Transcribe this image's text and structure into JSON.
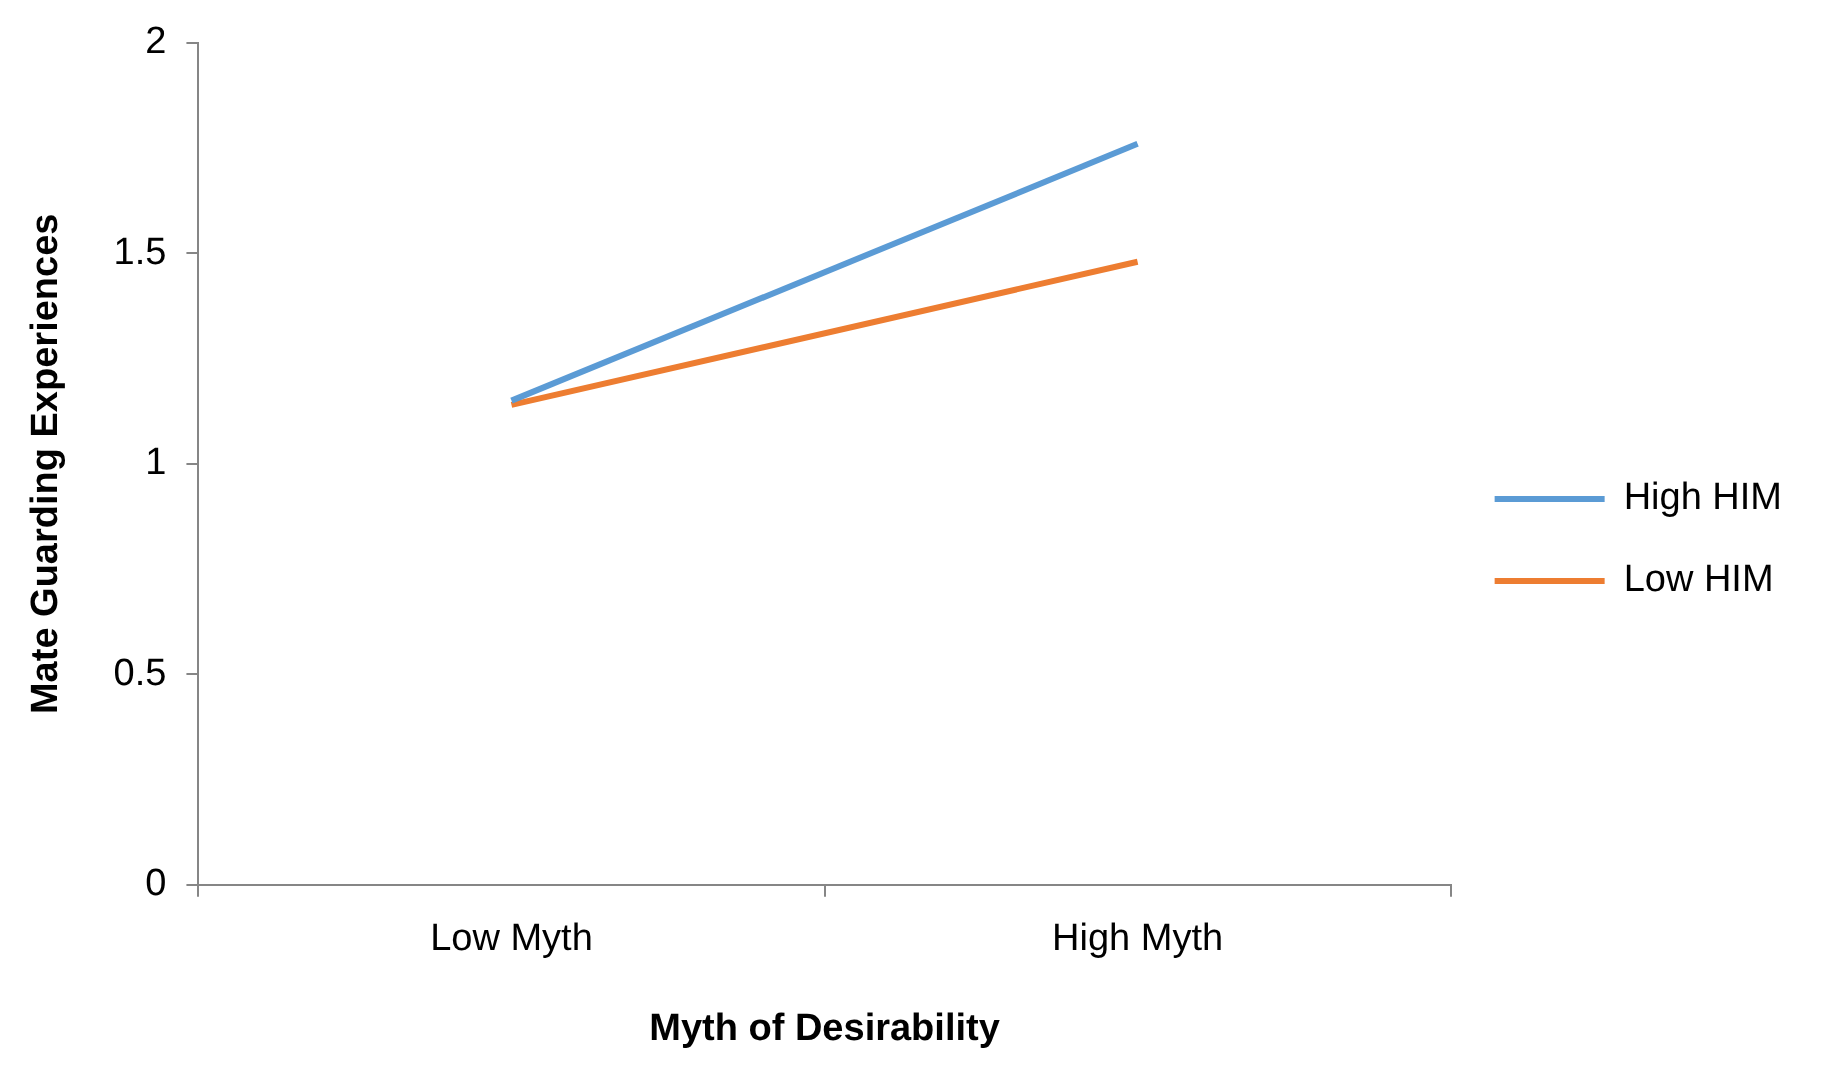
{
  "chart_data": {
    "type": "line",
    "xlabel": "Myth of Desirability",
    "ylabel": "Mate Guarding Experiences",
    "categories": [
      "Low Myth",
      "High Myth"
    ],
    "series": [
      {
        "name": "High HIM",
        "color": "#5b9bd5",
        "values": [
          1.15,
          1.76
        ]
      },
      {
        "name": "Low HIM",
        "color": "#ed7d31",
        "values": [
          1.14,
          1.48
        ]
      }
    ],
    "ylim": [
      0,
      2
    ],
    "yticks": [
      0,
      0.5,
      1,
      1.5,
      2
    ],
    "grid": false,
    "legend": "right",
    "marker": "none",
    "line_style": "solid"
  }
}
